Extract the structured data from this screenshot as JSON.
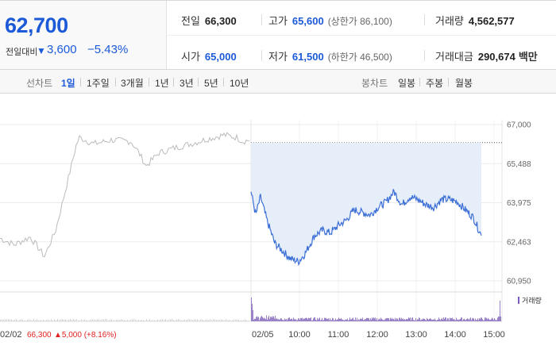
{
  "summary": {
    "current_price": "62,700",
    "compare_label": "전일대비",
    "compare_arrow": "▼",
    "compare_value": "3,600",
    "compare_rate": "−5.43%",
    "prev_close": {
      "label": "전일",
      "value": "66,300"
    },
    "high": {
      "label": "고가",
      "value": "65,600",
      "limit_text": "(상한가 86,100)"
    },
    "volume": {
      "label": "거래량",
      "value": "4,562,577"
    },
    "open": {
      "label": "시가",
      "value": "65,000"
    },
    "low": {
      "label": "저가",
      "value": "61,500",
      "limit_text": "(하한가 46,500)"
    },
    "trade_value": {
      "label": "거래대금",
      "value": "290,674",
      "unit": "백만"
    }
  },
  "toolbar": {
    "line_chart_label": "선차트",
    "periods": [
      "1일",
      "1주일",
      "3개월",
      "1년",
      "3년",
      "5년",
      "10년"
    ],
    "active_period": "1일",
    "candle_chart_label": "봉차트",
    "candle_periods": [
      "일봉",
      "주봉",
      "월봉"
    ]
  },
  "colors": {
    "blue": "#1c5ad8",
    "red": "#e0201f",
    "line_blue": "#3c6fd6",
    "prev_line_gray": "#bbbbbb",
    "fill_area": "#e6eefa"
  },
  "chart_data": {
    "type": "line",
    "yticks": [
      "67,000",
      "65,488",
      "63,975",
      "62,463",
      "60,950"
    ],
    "ylim": [
      60950,
      67000
    ],
    "prev_close_ref": 66300,
    "prev_day": {
      "date_label": "02/02",
      "close_text": "66,300",
      "change_text": "▲5,000 (+8.16%)"
    },
    "today": {
      "date_label": "02/05",
      "xticks": [
        "10:00",
        "11:00",
        "12:00",
        "13:00",
        "14:00",
        "15:00"
      ],
      "anchors": [
        [
          0,
          64400
        ],
        [
          6,
          63500
        ],
        [
          12,
          64200
        ],
        [
          20,
          63300
        ],
        [
          30,
          62400
        ],
        [
          40,
          62100
        ],
        [
          50,
          61800
        ],
        [
          60,
          61700
        ],
        [
          68,
          62000
        ],
        [
          80,
          62700
        ],
        [
          90,
          62900
        ],
        [
          100,
          62800
        ],
        [
          110,
          63100
        ],
        [
          120,
          63300
        ],
        [
          130,
          63700
        ],
        [
          140,
          63600
        ],
        [
          150,
          63500
        ],
        [
          160,
          63800
        ],
        [
          170,
          64000
        ],
        [
          180,
          64400
        ],
        [
          190,
          63900
        ],
        [
          200,
          64200
        ],
        [
          210,
          64100
        ],
        [
          220,
          63900
        ],
        [
          230,
          63800
        ],
        [
          240,
          64100
        ],
        [
          250,
          64100
        ],
        [
          260,
          64000
        ],
        [
          270,
          63700
        ],
        [
          280,
          63400
        ],
        [
          290,
          62700
        ]
      ]
    },
    "volume_legend": "거래량"
  }
}
